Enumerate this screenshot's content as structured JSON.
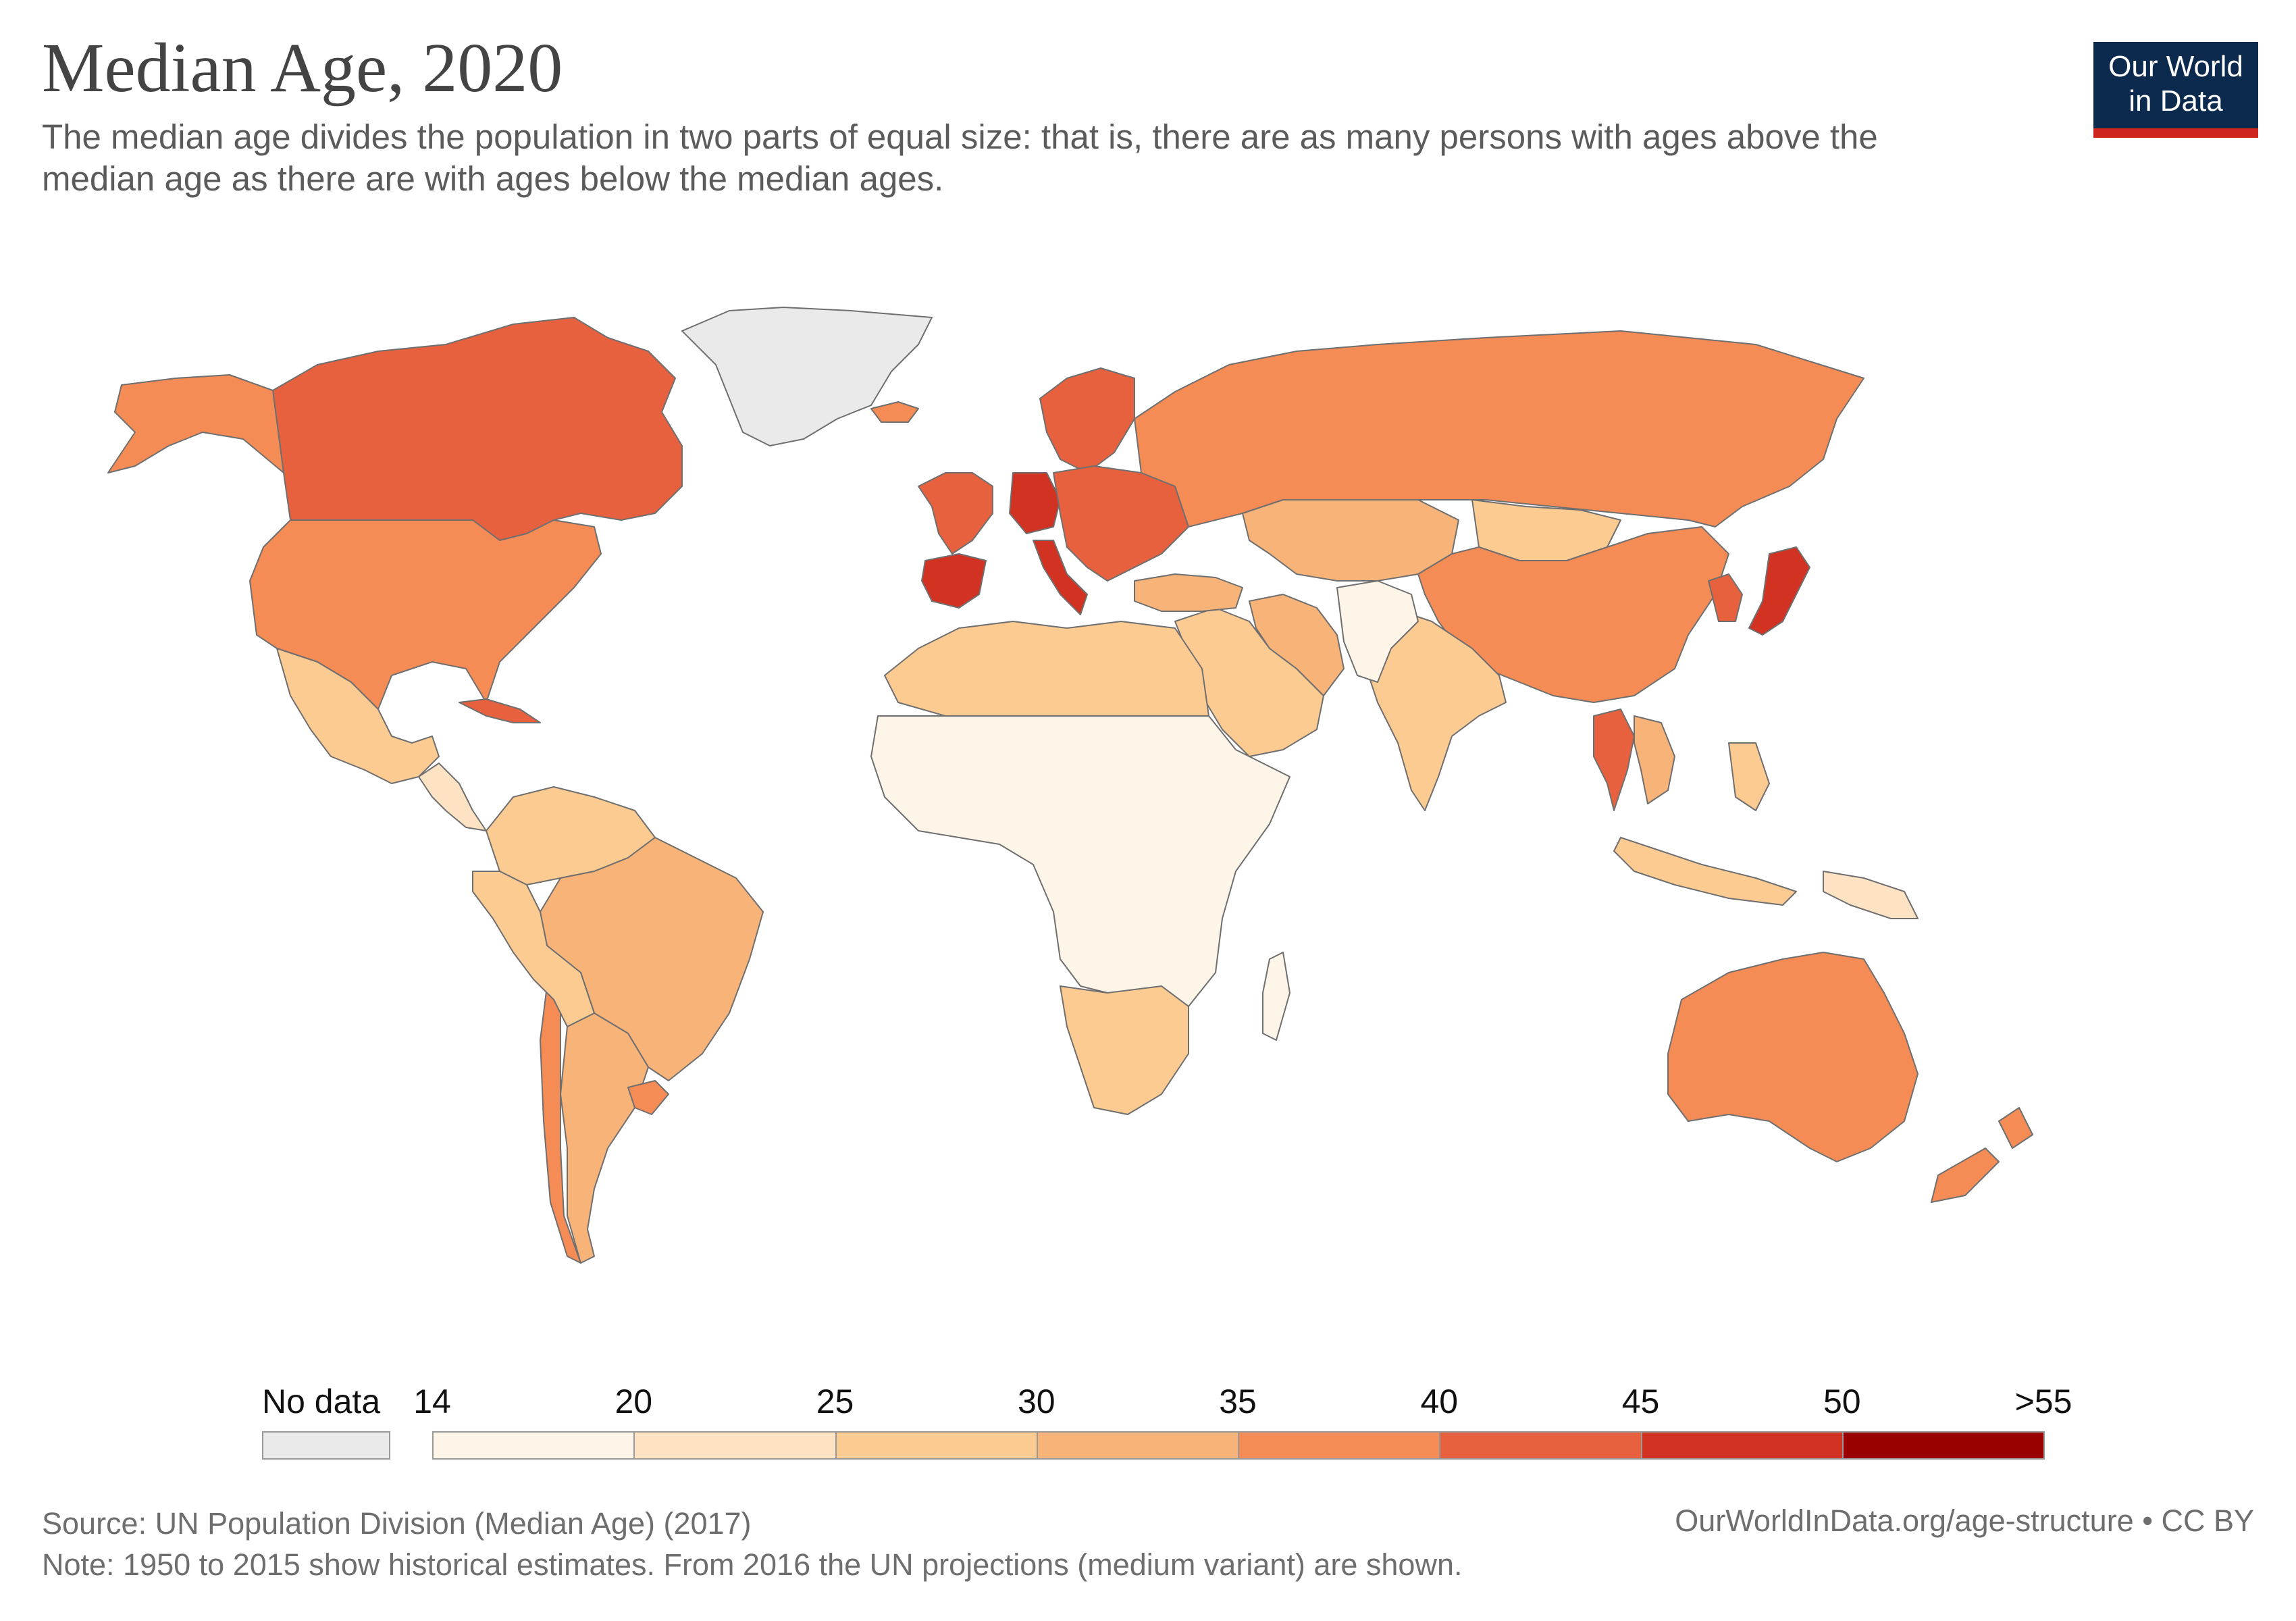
{
  "title": "Median Age, 2020",
  "subtitle": "The median age divides the population in two parts of equal size: that is, there are as many persons with ages above the median age as there are with ages below the median ages.",
  "logo": {
    "line1": "Our World",
    "line2": "in Data"
  },
  "legend": {
    "no_data_label": "No data",
    "no_data_color": "#eaeaea",
    "bins": [
      {
        "from": "14",
        "to": "20",
        "color": "#fef5e9"
      },
      {
        "from": "20",
        "to": "25",
        "color": "#fde3c3"
      },
      {
        "from": "25",
        "to": "30",
        "color": "#fccb92"
      },
      {
        "from": "30",
        "to": "35",
        "color": "#f8b379"
      },
      {
        "from": "35",
        "to": "40",
        "color": "#f58c56"
      },
      {
        "from": "40",
        "to": "45",
        "color": "#e7613f"
      },
      {
        "from": "45",
        "to": "50",
        "color": "#d13222"
      },
      {
        "from": "50",
        "to": ">55",
        "color": "#990000"
      }
    ],
    "tick_labels": [
      "14",
      "20",
      "25",
      "30",
      "35",
      "40",
      "45",
      "50",
      ">55"
    ]
  },
  "regions": [
    {
      "name": "Canada",
      "bin": "40-45"
    },
    {
      "name": "Alaska",
      "bin": "35-40"
    },
    {
      "name": "United States",
      "bin": "35-40"
    },
    {
      "name": "Greenland",
      "bin": "No data"
    },
    {
      "name": "Mexico",
      "bin": "25-30"
    },
    {
      "name": "Central America",
      "bin": "20-25"
    },
    {
      "name": "Cuba",
      "bin": "40-45"
    },
    {
      "name": "Colombia & Venezuela",
      "bin": "25-30"
    },
    {
      "name": "Brazil",
      "bin": "30-35"
    },
    {
      "name": "Argentina",
      "bin": "30-35"
    },
    {
      "name": "Chile",
      "bin": "35-40"
    },
    {
      "name": "Uruguay",
      "bin": "35-40"
    },
    {
      "name": "Andes",
      "bin": "25-30"
    },
    {
      "name": "Iceland",
      "bin": "35-40"
    },
    {
      "name": "Scandinavia",
      "bin": "40-45"
    },
    {
      "name": "Western Europe",
      "bin": "40-45"
    },
    {
      "name": "Germany",
      "bin": "45-50"
    },
    {
      "name": "Iberia",
      "bin": "45-50"
    },
    {
      "name": "Italy",
      "bin": "45-50"
    },
    {
      "name": "Eastern Europe",
      "bin": "40-45"
    },
    {
      "name": "Russia",
      "bin": "35-40"
    },
    {
      "name": "Kazakhstan & Central Asia",
      "bin": "30-35"
    },
    {
      "name": "Mongolia",
      "bin": "25-30"
    },
    {
      "name": "China",
      "bin": "35-40"
    },
    {
      "name": "Japan",
      "bin": "45-50"
    },
    {
      "name": "Korea",
      "bin": "40-45"
    },
    {
      "name": "Thailand",
      "bin": "40-45"
    },
    {
      "name": "Vietnam",
      "bin": "30-35"
    },
    {
      "name": "India",
      "bin": "25-30"
    },
    {
      "name": "Middle East",
      "bin": "25-30"
    },
    {
      "name": "Turkey",
      "bin": "30-35"
    },
    {
      "name": "Iran",
      "bin": "30-35"
    },
    {
      "name": "Afghanistan & Pakistan",
      "bin": "14-20"
    },
    {
      "name": "North Africa",
      "bin": "25-30"
    },
    {
      "name": "Sub-Saharan Africa",
      "bin": "14-20"
    },
    {
      "name": "Southern Africa",
      "bin": "25-30"
    },
    {
      "name": "Madagascar",
      "bin": "14-20"
    },
    {
      "name": "Indonesia & Philippines",
      "bin": "25-30"
    },
    {
      "name": "Papua New Guinea",
      "bin": "20-25"
    },
    {
      "name": "Australia",
      "bin": "35-40"
    },
    {
      "name": "New Zealand",
      "bin": "35-40"
    }
  ],
  "footer": {
    "source": "Source: UN Population Division (Median Age) (2017)",
    "note": "Note: 1950 to 2015 show historical estimates. From 2016 the UN projections (medium variant) are shown.",
    "url": "OurWorldInData.org/age-structure • CC BY"
  }
}
